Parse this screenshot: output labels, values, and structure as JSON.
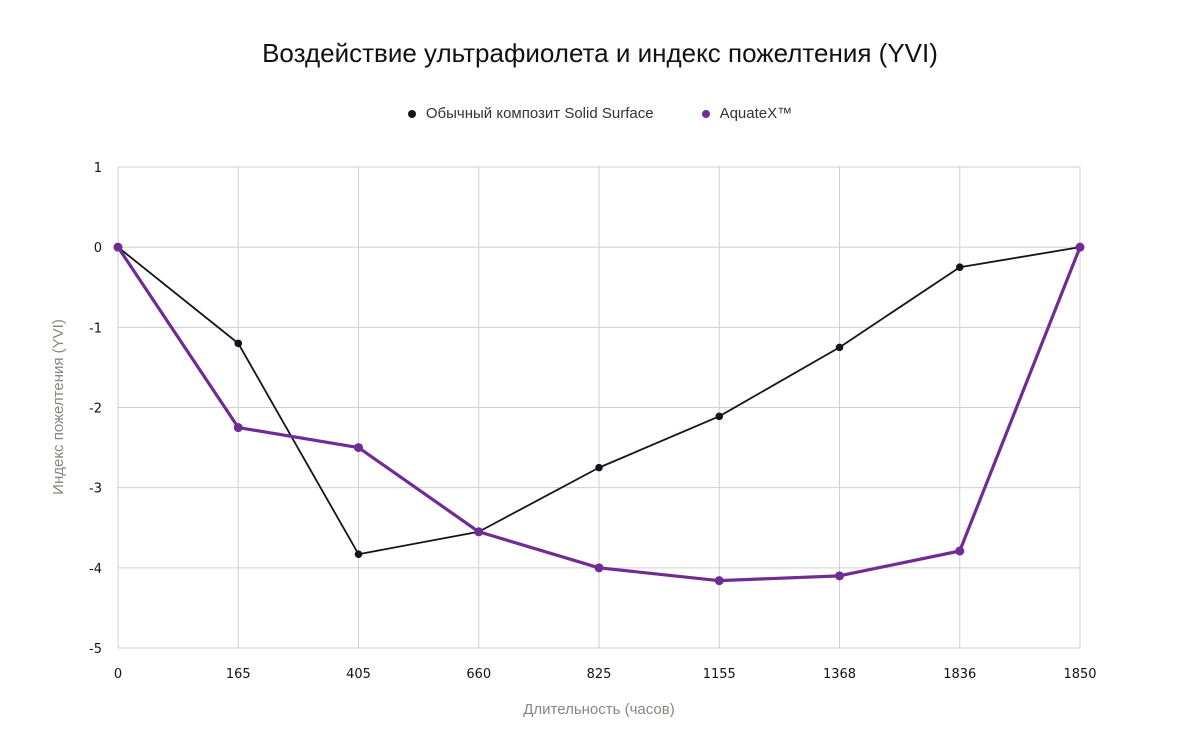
{
  "chart_data": {
    "type": "line",
    "title": "Воздействие ультрафиолета и индекс пожелтения (YVI)",
    "xlabel": "Длительность (часов)",
    "ylabel": "Индекс пожелтения (YVI)",
    "categories": [
      "0",
      "165",
      "405",
      "660",
      "825",
      "1155",
      "1368",
      "1836",
      "1850"
    ],
    "y_ticks": [
      "1",
      "0",
      "-1",
      "-2",
      "-3",
      "-4",
      "-5"
    ],
    "ylim": [
      -5,
      1
    ],
    "grid": true,
    "legend_position": "top-center",
    "series": [
      {
        "name": "Обычный композит Solid Surface",
        "color": "#14141f",
        "values": [
          0,
          -1.2,
          -3.83,
          -3.55,
          -2.75,
          -2.11,
          -1.25,
          -0.25,
          0
        ]
      },
      {
        "name": "AquateX™",
        "color": "#6f2c91",
        "values": [
          0,
          -2.25,
          -2.5,
          -3.55,
          -4.0,
          -4.16,
          -4.1,
          -3.79,
          0
        ]
      }
    ]
  }
}
